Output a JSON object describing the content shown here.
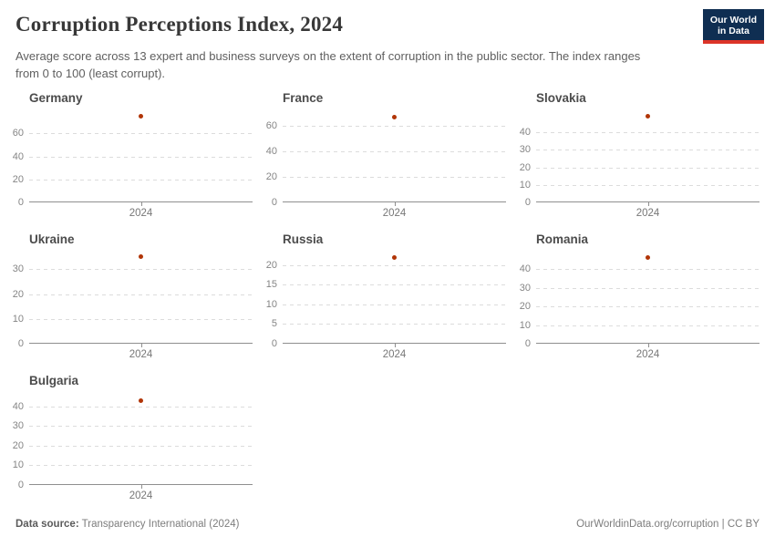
{
  "header": {
    "title": "Corruption Perceptions Index, 2024",
    "subtitle": "Average score across 13 expert and business surveys on the extent of corruption in the public sector. The index ranges from 0 to 100 (least corrupt).",
    "logo": {
      "line1": "Our World",
      "line2": "in Data"
    }
  },
  "colors": {
    "dot": "#b13507",
    "gridline": "#dcdcdc",
    "axis": "#8f8f8f",
    "logo_background": "#0f2e52",
    "logo_bar": "#dc3428"
  },
  "chart_data": [
    {
      "type": "scatter",
      "title": "Germany",
      "x": [
        2024
      ],
      "values": [
        75
      ],
      "xlabel": "2024",
      "yticks": [
        0,
        20,
        40,
        60
      ],
      "ylim": [
        0,
        81
      ],
      "grid": true
    },
    {
      "type": "scatter",
      "title": "France",
      "x": [
        2024
      ],
      "values": [
        67
      ],
      "xlabel": "2024",
      "yticks": [
        0,
        20,
        40,
        60
      ],
      "ylim": [
        0,
        73
      ],
      "grid": true
    },
    {
      "type": "scatter",
      "title": "Slovakia",
      "x": [
        2024
      ],
      "values": [
        49
      ],
      "xlabel": "2024",
      "yticks": [
        0,
        10,
        20,
        30,
        40
      ],
      "ylim": [
        0,
        53
      ],
      "grid": true
    },
    {
      "type": "scatter",
      "title": "Ukraine",
      "x": [
        2024
      ],
      "values": [
        35
      ],
      "xlabel": "2024",
      "yticks": [
        0,
        10,
        20,
        30
      ],
      "ylim": [
        0,
        37.5
      ],
      "grid": true
    },
    {
      "type": "scatter",
      "title": "Russia",
      "x": [
        2024
      ],
      "values": [
        22
      ],
      "xlabel": "2024",
      "yticks": [
        0,
        5,
        10,
        15,
        20
      ],
      "ylim": [
        0,
        23.7
      ],
      "grid": true
    },
    {
      "type": "scatter",
      "title": "Romania",
      "x": [
        2024
      ],
      "values": [
        46
      ],
      "xlabel": "2024",
      "yticks": [
        0,
        10,
        20,
        30,
        40
      ],
      "ylim": [
        0,
        49.8
      ],
      "grid": true
    },
    {
      "type": "scatter",
      "title": "Bulgaria",
      "x": [
        2024
      ],
      "values": [
        43
      ],
      "xlabel": "2024",
      "yticks": [
        0,
        10,
        20,
        30,
        40
      ],
      "ylim": [
        0,
        47.2
      ],
      "grid": true
    }
  ],
  "footer": {
    "source_label": "Data source:",
    "source": "Transparency International (2024)",
    "link": "OurWorldinData.org/corruption",
    "separator": " | ",
    "license": "CC BY"
  }
}
